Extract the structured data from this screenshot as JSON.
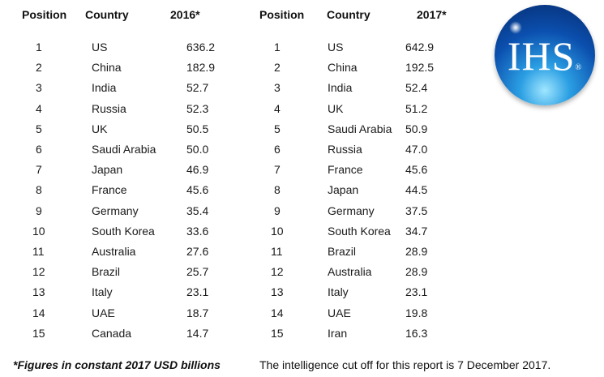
{
  "headers": {
    "left": [
      "Position",
      "Country",
      "2016*"
    ],
    "right": [
      "Position",
      "Country",
      "2017*"
    ]
  },
  "rows_2016": [
    [
      "1",
      "US",
      "636.2"
    ],
    [
      "2",
      "China",
      "182.9"
    ],
    [
      "3",
      "India",
      "52.7"
    ],
    [
      "4",
      "Russia",
      "52.3"
    ],
    [
      "5",
      "UK",
      "50.5"
    ],
    [
      "6",
      "Saudi Arabia",
      "50.0"
    ],
    [
      "7",
      "Japan",
      "46.9"
    ],
    [
      "8",
      "France",
      "45.6"
    ],
    [
      "9",
      "Germany",
      "35.4"
    ],
    [
      "10",
      "South Korea",
      "33.6"
    ],
    [
      "11",
      "Australia",
      "27.6"
    ],
    [
      "12",
      "Brazil",
      "25.7"
    ],
    [
      "13",
      "Italy",
      "23.1"
    ],
    [
      "14",
      "UAE",
      "18.7"
    ],
    [
      "15",
      "Canada",
      "14.7"
    ]
  ],
  "rows_2017": [
    [
      "1",
      "US",
      "642.9"
    ],
    [
      "2",
      "China",
      "192.5"
    ],
    [
      "3",
      "India",
      "52.4"
    ],
    [
      "4",
      "UK",
      "51.2"
    ],
    [
      "5",
      "Saudi Arabia",
      "50.9"
    ],
    [
      "6",
      "Russia",
      "47.0"
    ],
    [
      "7",
      "France",
      "45.6"
    ],
    [
      "8",
      "Japan",
      "44.5"
    ],
    [
      "9",
      "Germany",
      "37.5"
    ],
    [
      "10",
      "South Korea",
      "34.7"
    ],
    [
      "11",
      "Brazil",
      "28.9"
    ],
    [
      "12",
      "Australia",
      "28.9"
    ],
    [
      "13",
      "Italy",
      "23.1"
    ],
    [
      "14",
      "UAE",
      "19.8"
    ],
    [
      "15",
      "Iran",
      "16.3"
    ]
  ],
  "logo": {
    "text": "IHS",
    "mark": "®"
  },
  "footer": {
    "note": "*Figures in constant 2017 USD billions",
    "cutoff": "The intelligence cut off for this report is 7 December 2017."
  }
}
